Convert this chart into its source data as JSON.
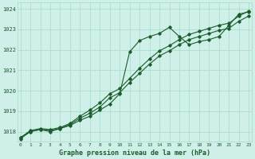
{
  "title": "Graphe pression niveau de la mer (hPa)",
  "bg_color": "#cff0e8",
  "grid_color": "#aaddcc",
  "line_color": "#1a5c2a",
  "xlim": [
    -0.3,
    23.3
  ],
  "ylim": [
    1017.5,
    1024.3
  ],
  "yticks": [
    1018,
    1019,
    1020,
    1021,
    1022,
    1023,
    1024
  ],
  "xticks": [
    0,
    1,
    2,
    3,
    4,
    5,
    6,
    7,
    8,
    9,
    10,
    11,
    12,
    13,
    14,
    15,
    16,
    17,
    18,
    19,
    20,
    21,
    22,
    23
  ],
  "line_wavy": [
    1017.7,
    1018.0,
    1018.1,
    1018.0,
    1018.15,
    1018.3,
    1018.55,
    1018.75,
    1019.05,
    1019.35,
    1019.85,
    1021.9,
    1022.45,
    1022.65,
    1022.8,
    1023.1,
    1022.65,
    1022.25,
    1022.4,
    1022.5,
    1022.65,
    1023.2,
    1023.75,
    1023.85
  ],
  "line_mid": [
    1017.7,
    1018.05,
    1018.15,
    1018.1,
    1018.2,
    1018.4,
    1018.75,
    1019.05,
    1019.4,
    1019.85,
    1020.1,
    1020.6,
    1021.1,
    1021.55,
    1021.95,
    1022.2,
    1022.5,
    1022.75,
    1022.9,
    1023.05,
    1023.2,
    1023.3,
    1023.65,
    1023.9
  ],
  "line_low": [
    1017.65,
    1018.0,
    1018.1,
    1018.05,
    1018.15,
    1018.35,
    1018.65,
    1018.9,
    1019.2,
    1019.65,
    1019.9,
    1020.4,
    1020.85,
    1021.3,
    1021.7,
    1021.95,
    1022.25,
    1022.5,
    1022.65,
    1022.8,
    1022.95,
    1023.05,
    1023.4,
    1023.65
  ]
}
